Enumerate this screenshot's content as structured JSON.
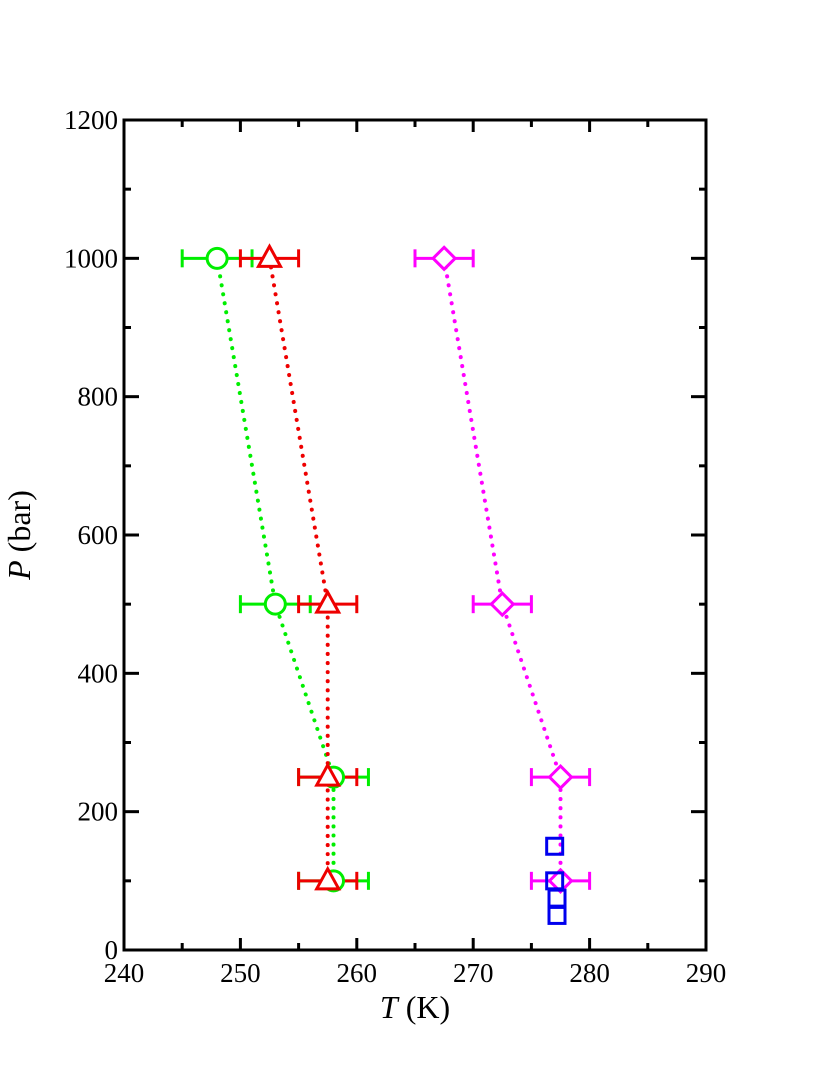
{
  "chart_data": {
    "type": "scatter",
    "title": "",
    "xlabel": {
      "symbol": "T",
      "unit": "(K)"
    },
    "ylabel": {
      "symbol": "P",
      "unit": "(bar)"
    },
    "xlim": [
      240,
      290
    ],
    "ylim": [
      0,
      1200
    ],
    "x_ticks": [
      240,
      250,
      260,
      270,
      280,
      290
    ],
    "y_ticks": [
      0,
      200,
      400,
      600,
      800,
      1000,
      1200
    ],
    "x_minor_step": 5,
    "y_minor_step": 100,
    "grid": false,
    "legend": "none",
    "series": [
      {
        "marker": "circle",
        "color": "#00ee00",
        "line": "dotted",
        "points": [
          {
            "x": 248,
            "y": 1000,
            "xerr": 3
          },
          {
            "x": 253,
            "y": 500,
            "xerr": 3
          },
          {
            "x": 258,
            "y": 250,
            "xerr": 3
          },
          {
            "x": 258,
            "y": 100,
            "xerr": 3
          }
        ]
      },
      {
        "marker": "triangle",
        "color": "#ee0000",
        "line": "dotted",
        "points": [
          {
            "x": 252.5,
            "y": 1000,
            "xerr": 2.5
          },
          {
            "x": 257.5,
            "y": 500,
            "xerr": 2.5
          },
          {
            "x": 257.5,
            "y": 250,
            "xerr": 2.5
          },
          {
            "x": 257.5,
            "y": 100,
            "xerr": 2.5
          }
        ]
      },
      {
        "marker": "diamond",
        "color": "#ff00ff",
        "line": "dotted",
        "points": [
          {
            "x": 267.5,
            "y": 1000,
            "xerr": 2.5
          },
          {
            "x": 272.5,
            "y": 500,
            "xerr": 2.5
          },
          {
            "x": 277.5,
            "y": 250,
            "xerr": 2.5
          },
          {
            "x": 277.5,
            "y": 100,
            "xerr": 2.5
          }
        ]
      },
      {
        "marker": "square",
        "color": "#0000ee",
        "line": "none",
        "points": [
          {
            "x": 277,
            "y": 150
          },
          {
            "x": 277,
            "y": 100
          },
          {
            "x": 277.2,
            "y": 75
          },
          {
            "x": 277.2,
            "y": 50
          }
        ]
      }
    ]
  }
}
